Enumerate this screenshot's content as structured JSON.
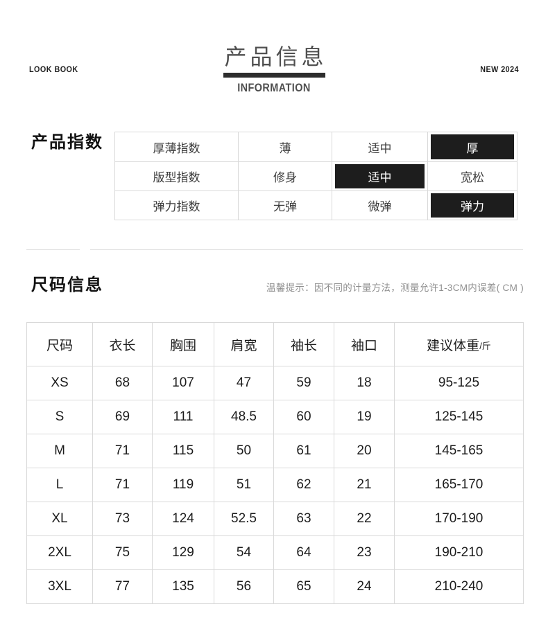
{
  "header": {
    "left_label": "LOOK BOOK",
    "title": "产品信息",
    "subtitle": "INFORMATION",
    "right_label": "NEW 2024"
  },
  "product_index": {
    "section_title": "产品指数",
    "rows": [
      {
        "label": "厚薄指数",
        "options": [
          "薄",
          "适中",
          "厚"
        ],
        "selected": 2
      },
      {
        "label": "版型指数",
        "options": [
          "修身",
          "适中",
          "宽松"
        ],
        "selected": 1
      },
      {
        "label": "弹力指数",
        "options": [
          "无弹",
          "微弹",
          "弹力"
        ],
        "selected": 2
      }
    ]
  },
  "size_info": {
    "section_title": "尺码信息",
    "note": "温馨提示：因不同的计量方法，测量允许1-3CM内误差( CM )",
    "table": {
      "headers": [
        "尺码",
        "衣长",
        "胸围",
        "肩宽",
        "袖长",
        "袖口",
        "建议体重"
      ],
      "last_header_unit": "/斤",
      "rows": [
        [
          "XS",
          "68",
          "107",
          "47",
          "59",
          "18",
          "95-125"
        ],
        [
          "S",
          "69",
          "111",
          "48.5",
          "60",
          "19",
          "125-145"
        ],
        [
          "M",
          "71",
          "115",
          "50",
          "61",
          "20",
          "145-165"
        ],
        [
          "L",
          "71",
          "119",
          "51",
          "62",
          "21",
          "165-170"
        ],
        [
          "XL",
          "73",
          "124",
          "52.5",
          "63",
          "22",
          "170-190"
        ],
        [
          "2XL",
          "75",
          "129",
          "54",
          "64",
          "23",
          "190-210"
        ],
        [
          "3XL",
          "77",
          "135",
          "56",
          "65",
          "24",
          "210-240"
        ]
      ]
    }
  },
  "colors": {
    "highlight_bg": "#1d1d1d",
    "highlight_text": "#ffffff",
    "border": "#d9d9d9",
    "title_bar": "#2d2d2d",
    "note_text": "#8f8f8f"
  }
}
